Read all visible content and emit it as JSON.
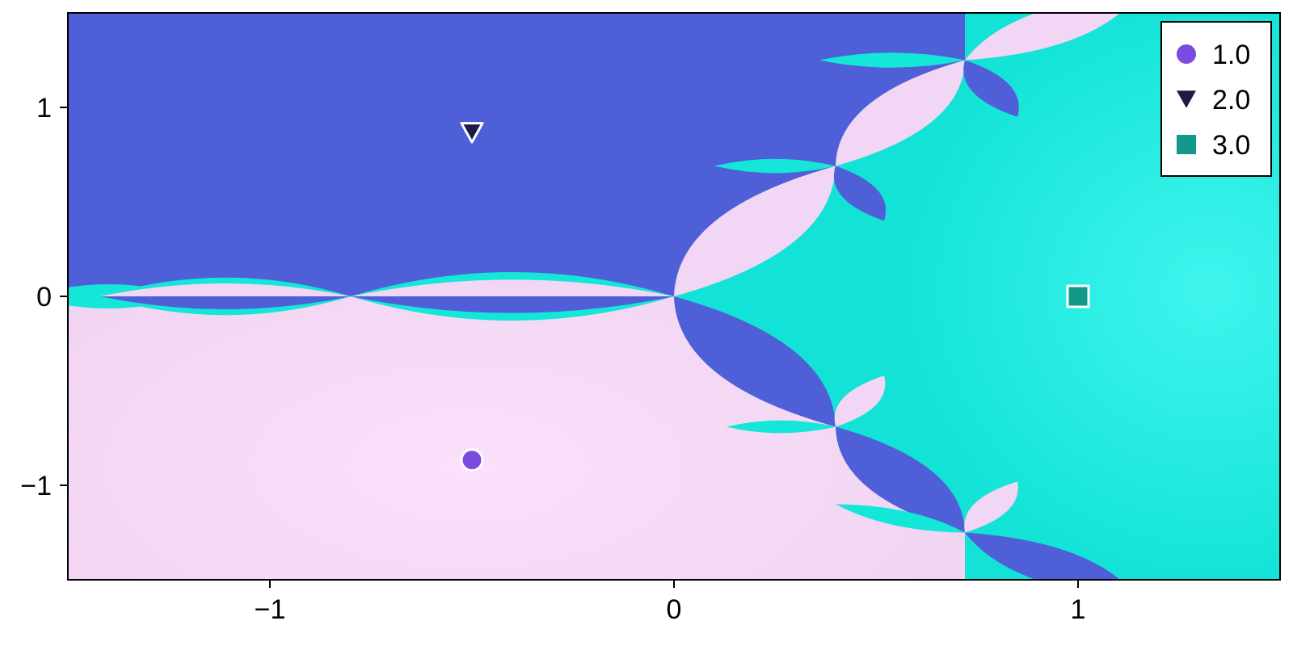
{
  "chart_data": {
    "type": "heatmap",
    "description_kind": "basin-of-attraction image with marked roots",
    "xlim": [
      -1.5,
      1.5
    ],
    "ylim": [
      -1.5,
      1.5
    ],
    "x_ticks": [
      {
        "value": -1,
        "label": "−1"
      },
      {
        "value": 0,
        "label": "0"
      },
      {
        "value": 1,
        "label": "1"
      }
    ],
    "y_ticks": [
      {
        "value": 1,
        "label": "1"
      },
      {
        "value": 0,
        "label": "0"
      },
      {
        "value": -1,
        "label": "−1"
      }
    ],
    "grid": false,
    "legend_position": "top-right",
    "series": [
      {
        "name": "1.0",
        "marker": "circle",
        "color": "#7b4be0",
        "x": -0.5,
        "y": -0.866
      },
      {
        "name": "2.0",
        "marker": "triangle-down",
        "color": "#1c1c44",
        "x": -0.5,
        "y": 0.866
      },
      {
        "name": "3.0",
        "marker": "square",
        "color": "#12998a",
        "x": 1.0,
        "y": 0.0
      }
    ],
    "basin_colors": {
      "root_1": "#f2d6f5",
      "root_2": "#4f5fd8",
      "root_3": "#14e6d8"
    }
  }
}
